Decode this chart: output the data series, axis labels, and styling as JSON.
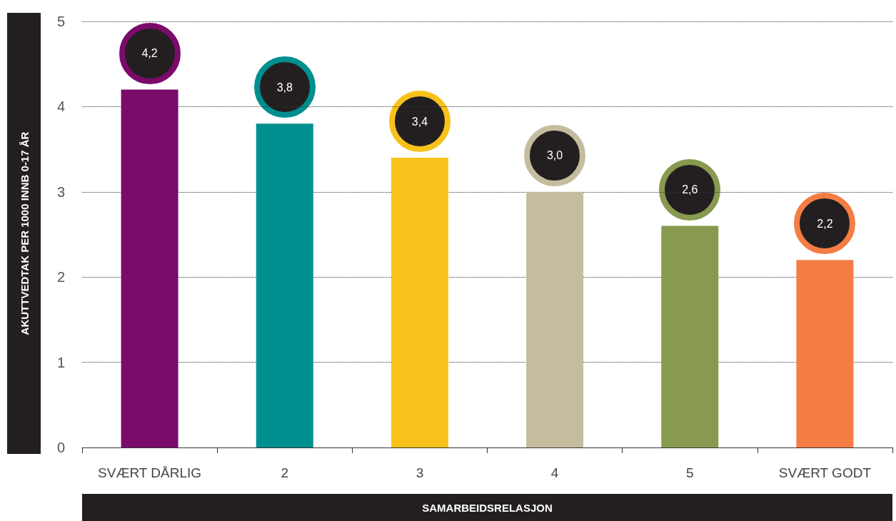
{
  "chart_data": {
    "type": "bar",
    "ylabel": "AKUTTVEDTAK PER 1000 INNB 0-17 ÅR",
    "xlabel": "SAMARBEIDSRELASJON",
    "categories": [
      "SVÆRT DÅRLIG",
      "2",
      "3",
      "4",
      "5",
      "SVÆRT GODT"
    ],
    "values": [
      4.2,
      3.8,
      3.4,
      3.0,
      2.6,
      2.2
    ],
    "value_labels": [
      "4,2",
      "3,8",
      "3,4",
      "3,0",
      "2,6",
      "2,2"
    ],
    "colors": [
      "#7a0b6b",
      "#008f8f",
      "#f8c21a",
      "#c4bc9e",
      "#879a4f",
      "#f47d44"
    ],
    "ylim": [
      0,
      5
    ],
    "yticks": [
      0,
      1,
      2,
      3,
      4,
      5
    ],
    "grid": "y"
  }
}
